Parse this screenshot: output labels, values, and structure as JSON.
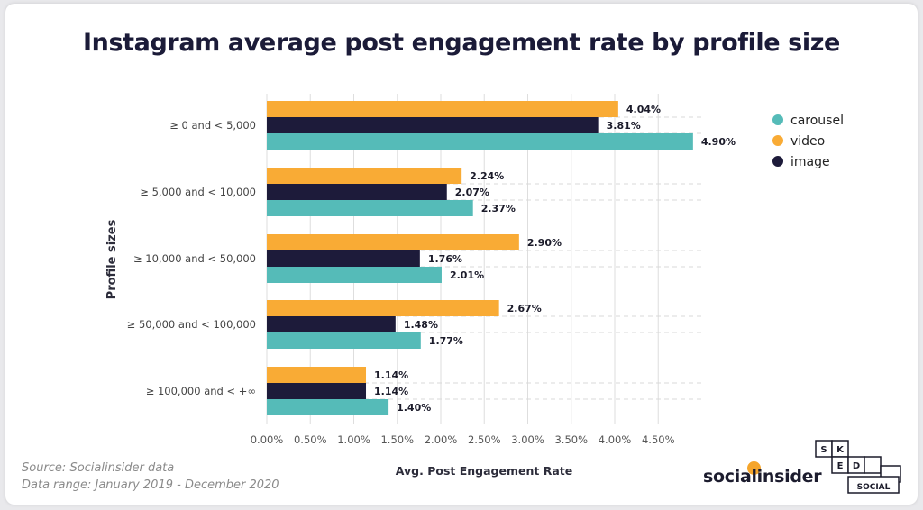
{
  "title": "Instagram average post engagement rate by profile size",
  "source": "Source: Socialinsider data",
  "date_range": "Data range: January 2019 - December 2020",
  "brand": {
    "name": "socialinsider",
    "partner_letters": [
      "S",
      "K",
      "E",
      "D",
      "SOCIAL"
    ]
  },
  "colors": {
    "carousel": "#55bbb8",
    "video": "#f9ab35",
    "image": "#1d1b3a",
    "grid": "#dedede"
  },
  "chart_data": {
    "type": "bar",
    "orientation": "horizontal",
    "title": "Instagram average post engagement rate by profile size",
    "xlabel": "Avg. Post Engagement Rate",
    "ylabel": "Profile sizes",
    "categories": [
      "≥ 0 and < 5,000",
      "≥ 5,000 and < 10,000",
      "≥ 10,000 and < 50,000",
      "≥ 50,000 and < 100,000",
      "≥ 100,000 and < +∞"
    ],
    "series": [
      {
        "name": "video",
        "values": [
          4.04,
          2.24,
          2.9,
          2.67,
          1.14
        ],
        "labels": [
          "4.04%",
          "2.24%",
          "2.90%",
          "2.67%",
          "1.14%"
        ]
      },
      {
        "name": "image",
        "values": [
          3.81,
          2.07,
          1.76,
          1.48,
          1.14
        ],
        "labels": [
          "3.81%",
          "2.07%",
          "1.76%",
          "1.48%",
          "1.14%"
        ]
      },
      {
        "name": "carousel",
        "values": [
          4.9,
          2.37,
          2.01,
          1.77,
          1.4
        ],
        "labels": [
          "4.90%",
          "2.37%",
          "2.01%",
          "1.77%",
          "1.40%"
        ]
      }
    ],
    "xticks": [
      "0.00%",
      "0.50%",
      "1.00%",
      "1.50%",
      "2.00%",
      "2.50%",
      "3.00%",
      "3.50%",
      "4.00%",
      "4.50%"
    ],
    "xlim": [
      0,
      4.9
    ],
    "grid": true,
    "legend": {
      "position": "top-right",
      "entries": [
        "carousel",
        "video",
        "image"
      ]
    }
  }
}
